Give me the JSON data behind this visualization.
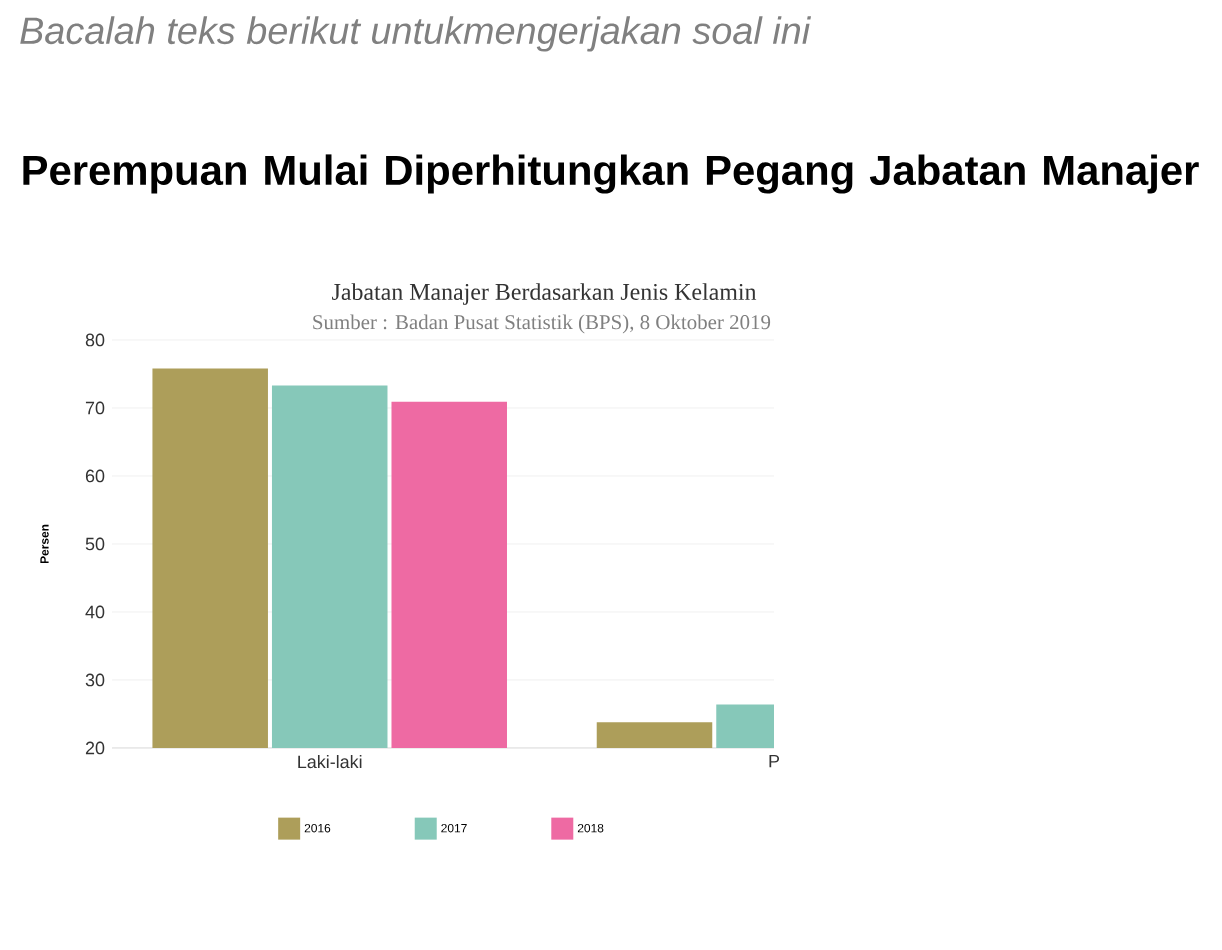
{
  "chart_data": {
    "type": "bar",
    "title": "Perempuan Mulai Diperhitungkan Pegang Jabatan Manajer",
    "subtitle": "Jabatan Manajer Berdasarkan Jenis Kelamin",
    "annotations": [
      "Sumber : Badan Pusat Statistik (BPS), 8 Oktober 2019",
      "Bacalah teks berikut untukmengerjakan soal ini"
    ],
    "ylabel": "Persen",
    "categories": [
      "Laki-laki",
      "P"
    ],
    "series": [
      {
        "name": "2016",
        "color": "#ad9e5a",
        "values": [
          75.8,
          23.8
        ]
      },
      {
        "name": "2017",
        "color": "#86c8b9",
        "values": [
          73.3,
          26.4
        ]
      },
      {
        "name": "2018",
        "color": "#ee6aa3",
        "values": [
          70.9,
          null
        ]
      }
    ],
    "ylim": [
      20,
      80
    ],
    "yticks": [
      20,
      30,
      40,
      50,
      60,
      70,
      80
    ],
    "grid": "y",
    "legend": "bottom"
  }
}
